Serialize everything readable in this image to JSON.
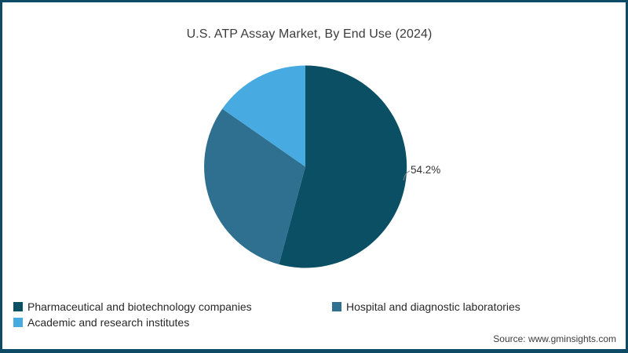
{
  "title": "U.S. ATP Assay Market, By End Use (2024)",
  "source": "Source: www.gminsights.com",
  "theme": {
    "border_color": "#0d4a66",
    "title_color": "#3c3c3c",
    "label_color": "#333333"
  },
  "chart_data": {
    "type": "pie",
    "title": "U.S. ATP Assay Market, By End Use (2024)",
    "unit": "%",
    "start_angle_deg": 0,
    "direction": "clockwise",
    "legend_position": "bottom-left",
    "slices": [
      {
        "label": "Pharmaceutical and biotechnology companies",
        "value": 54.2,
        "color": "#0a4f63",
        "data_label": "54.2%"
      },
      {
        "label": "Hospital and diagnostic laboratories",
        "value": 30.5,
        "color": "#2f6f8f"
      },
      {
        "label": "Academic and research institutes",
        "value": 15.3,
        "color": "#47abe2"
      }
    ]
  }
}
